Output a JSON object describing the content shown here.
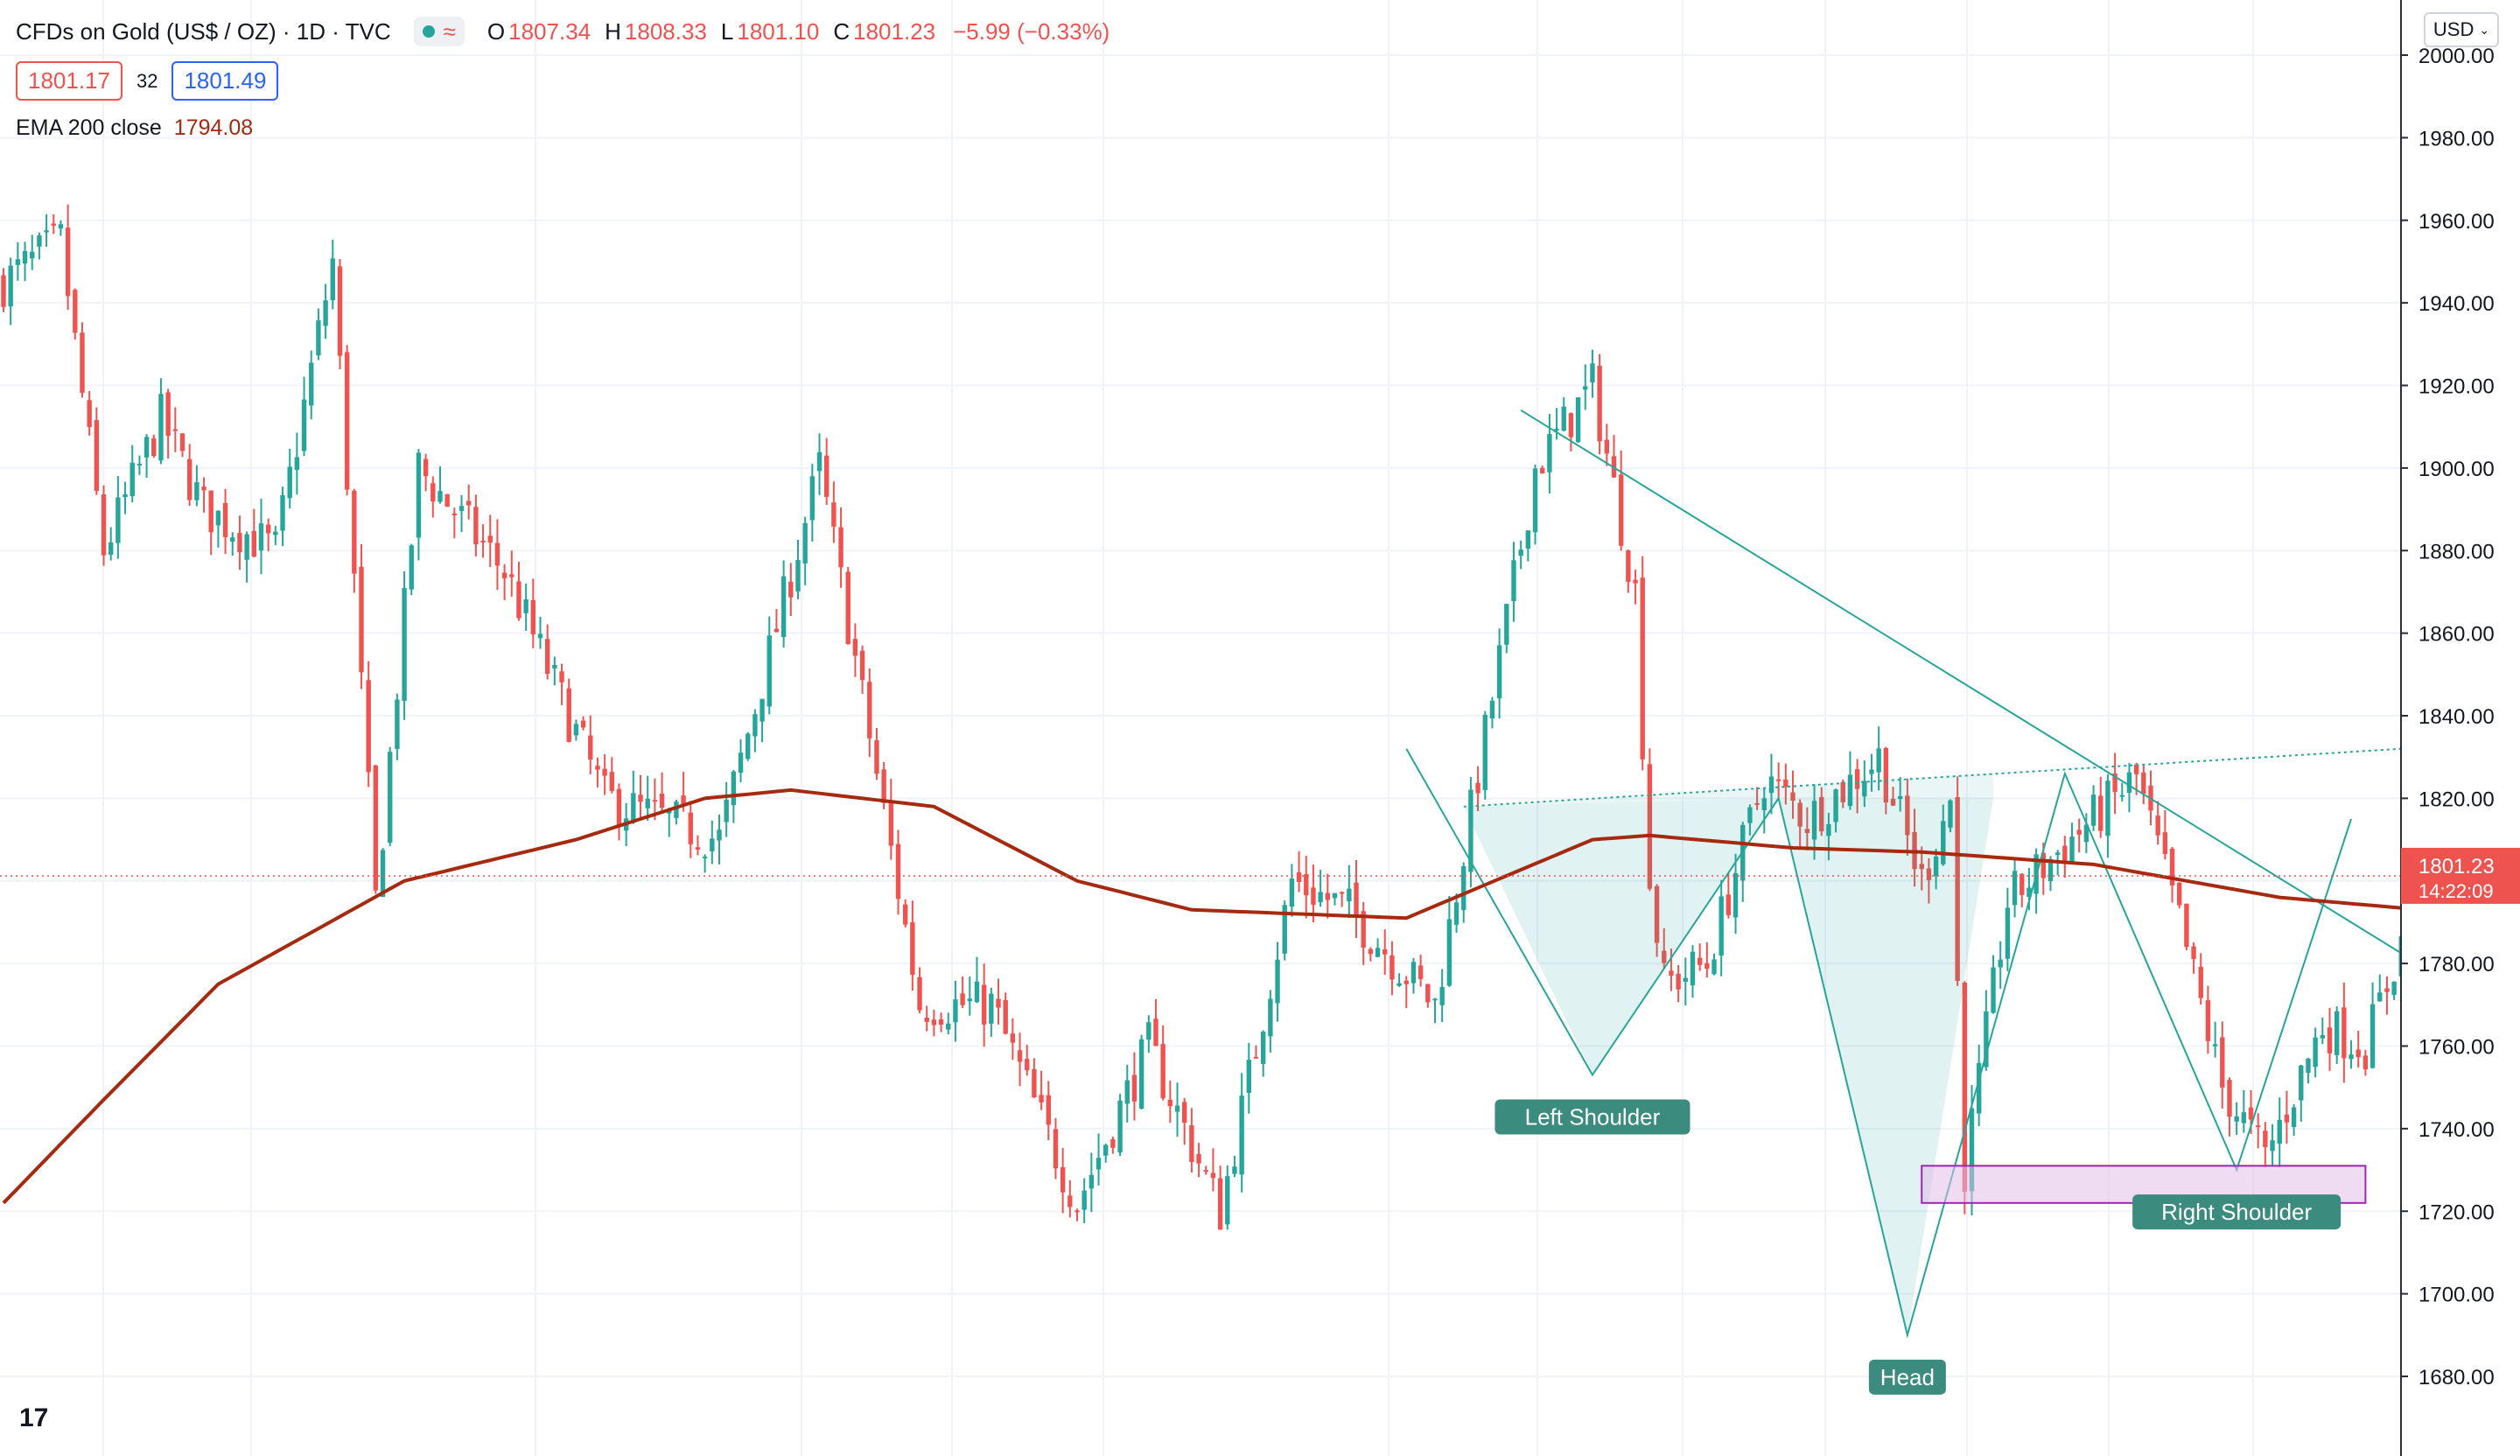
{
  "header": {
    "symbol": "CFDs on Gold (US$ / OZ)",
    "interval": "1D",
    "source": "TVC",
    "wave_icon": "≈",
    "ohlc": [
      {
        "k": "O",
        "v": "1807.34"
      },
      {
        "k": "H",
        "v": "1808.33"
      },
      {
        "k": "L",
        "v": "1801.10"
      },
      {
        "k": "C",
        "v": "1801.23"
      },
      {
        "k": "",
        "v": "−5.99 (−0.33%)"
      }
    ]
  },
  "trade": {
    "sell": "1801.17",
    "spread": "32",
    "buy": "1801.49"
  },
  "ema": {
    "label": "EMA 200 close",
    "value": "1794.08"
  },
  "currency": "USD",
  "logo": "17",
  "colors": {
    "up": "#26a69a",
    "down": "#ef5350",
    "ema": "#a52a0f",
    "pattern": "#26a69a",
    "zone": "#e1bee7"
  },
  "chart_data": {
    "type": "candlestick",
    "ylim": [
      1665,
      2008
    ],
    "ytick_labels": [
      "1680.00",
      "1700.00",
      "1720.00",
      "1740.00",
      "1760.00",
      "1780.00",
      "1800.00",
      "1820.00",
      "1840.00",
      "1860.00",
      "1880.00",
      "1900.00",
      "1920.00",
      "1940.00",
      "1960.00",
      "1980.00",
      "2000.00"
    ],
    "last_price": "1801.23",
    "countdown": "14:22:09",
    "close_anchors": [
      [
        0,
        1945
      ],
      [
        8,
        1955
      ],
      [
        14,
        1880
      ],
      [
        22,
        1912
      ],
      [
        28,
        1890
      ],
      [
        38,
        1880
      ],
      [
        46,
        1950
      ],
      [
        52,
        1795
      ],
      [
        58,
        1900
      ],
      [
        70,
        1875
      ],
      [
        84,
        1820
      ],
      [
        100,
        1810
      ],
      [
        114,
        1900
      ],
      [
        128,
        1770
      ],
      [
        138,
        1770
      ],
      [
        150,
        1722
      ],
      [
        160,
        1760
      ],
      [
        170,
        1720
      ],
      [
        180,
        1800
      ],
      [
        188,
        1793
      ],
      [
        200,
        1770
      ],
      [
        214,
        1900
      ],
      [
        222,
        1920
      ],
      [
        228,
        1870
      ],
      [
        230,
        1800
      ],
      [
        232,
        1775
      ],
      [
        238,
        1780
      ],
      [
        246,
        1825
      ],
      [
        252,
        1815
      ],
      [
        262,
        1830
      ],
      [
        268,
        1800
      ],
      [
        272,
        1820
      ],
      [
        274,
        1730
      ],
      [
        280,
        1795
      ],
      [
        290,
        1812
      ],
      [
        298,
        1825
      ],
      [
        304,
        1790
      ],
      [
        310,
        1750
      ],
      [
        316,
        1733
      ],
      [
        324,
        1765
      ],
      [
        330,
        1760
      ],
      [
        338,
        1800
      ],
      [
        342,
        1805
      ]
    ],
    "ema_anchors": [
      [
        0,
        1722
      ],
      [
        14,
        1747
      ],
      [
        30,
        1775
      ],
      [
        56,
        1800
      ],
      [
        80,
        1810
      ],
      [
        98,
        1820
      ],
      [
        110,
        1822
      ],
      [
        130,
        1818
      ],
      [
        150,
        1800
      ],
      [
        166,
        1793
      ],
      [
        196,
        1791
      ],
      [
        222,
        1810
      ],
      [
        230,
        1811
      ],
      [
        250,
        1808
      ],
      [
        268,
        1807
      ],
      [
        292,
        1804
      ],
      [
        318,
        1796
      ],
      [
        338,
        1793
      ],
      [
        345,
        1793
      ]
    ],
    "annotations": [
      {
        "text": "Left Shoulder",
        "x": 222,
        "price": 1753
      },
      {
        "text": "Head",
        "x": 266,
        "price": 1690
      },
      {
        "text": "Right Shoulder",
        "x": 312,
        "price": 1730
      }
    ]
  }
}
